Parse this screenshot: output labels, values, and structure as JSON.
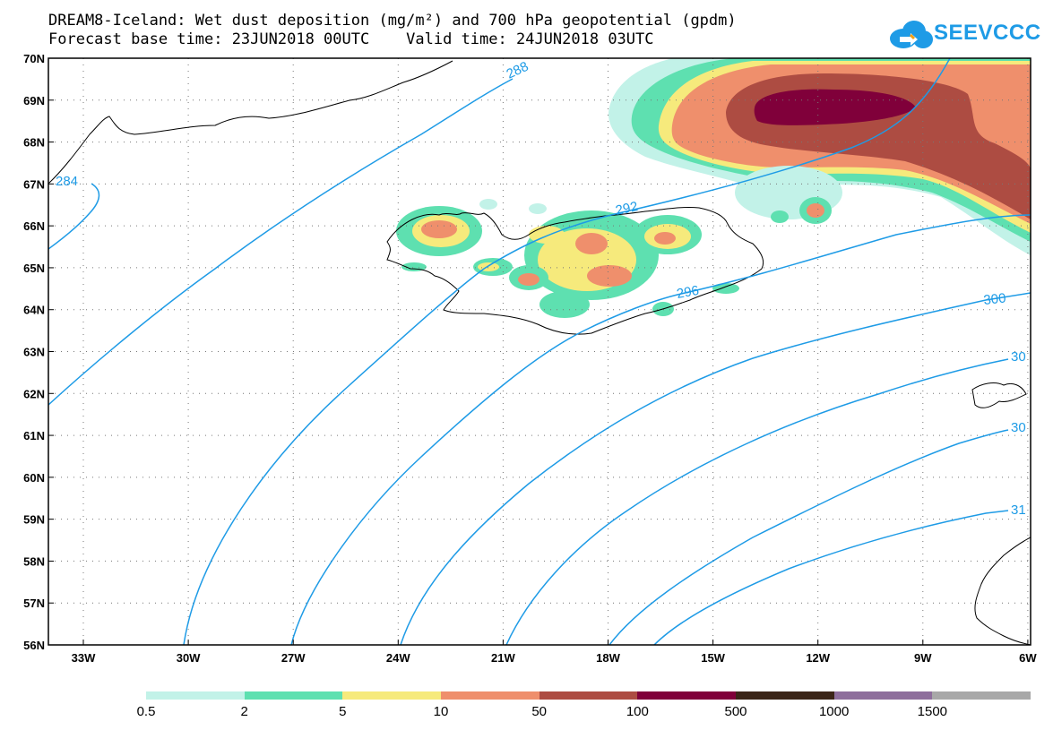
{
  "header": {
    "title_line1": "DREAM8-Iceland: Wet dust deposition (mg/m²) and 700 hPa geopotential (gpdm)",
    "title_line2": "Forecast base time: 23JUN2018 00UTC    Valid time: 24JUN2018 03UTC",
    "logo_text": "SEEVCCC"
  },
  "map": {
    "lat_labels": [
      "70N",
      "69N",
      "68N",
      "67N",
      "66N",
      "65N",
      "64N",
      "63N",
      "62N",
      "61N",
      "60N",
      "59N",
      "58N",
      "57N",
      "56N"
    ],
    "lon_labels": [
      "33W",
      "30W",
      "27W",
      "24W",
      "21W",
      "18W",
      "15W",
      "12W",
      "9W",
      "6W"
    ],
    "contour_labels": [
      "284",
      "288",
      "292",
      "296",
      "300",
      "30",
      "30",
      "31"
    ],
    "colors": {
      "contour": "#1e9be6",
      "coast": "#000000"
    }
  },
  "legend": {
    "labels": [
      "0.5",
      "2",
      "5",
      "10",
      "50",
      "100",
      "500",
      "1000",
      "1500"
    ],
    "colors": [
      "#c2f2e8",
      "#5ee0b0",
      "#f6ea7c",
      "#ef8f6c",
      "#ad4c42",
      "#80003a",
      "#3b2518",
      "#8e6e9c",
      "#a8a8a8"
    ]
  }
}
